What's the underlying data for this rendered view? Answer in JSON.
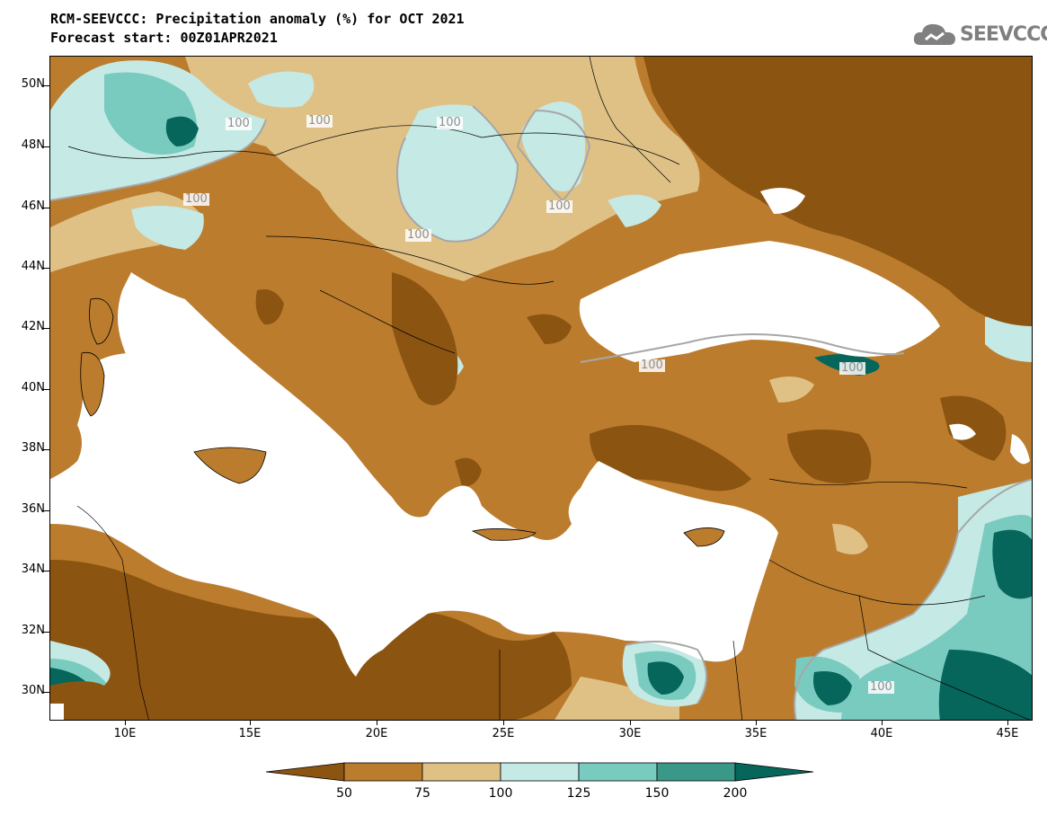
{
  "header": {
    "title": "RCM-SEEVCCC: Precipitation anomaly (%) for OCT 2021",
    "forecast": "Forecast start: 00Z01APR2021"
  },
  "logo": {
    "text": "SEEVCCC",
    "icon": "cloud-icon"
  },
  "map": {
    "lat_labels": [
      "50N",
      "48N",
      "46N",
      "44N",
      "42N",
      "40N",
      "38N",
      "36N",
      "34N",
      "32N",
      "30N"
    ],
    "lon_labels": [
      "10E",
      "15E",
      "20E",
      "25E",
      "30E",
      "35E",
      "40E",
      "45E"
    ],
    "contour_label": "100"
  },
  "colorbar": {
    "labels": [
      "50",
      "75",
      "100",
      "125",
      "150",
      "200"
    ],
    "colors": [
      "#8b5411",
      "#bb7c2e",
      "#dfc186",
      "#c5e9e4",
      "#79cbbf",
      "#3a9889",
      "#06665b"
    ]
  }
}
